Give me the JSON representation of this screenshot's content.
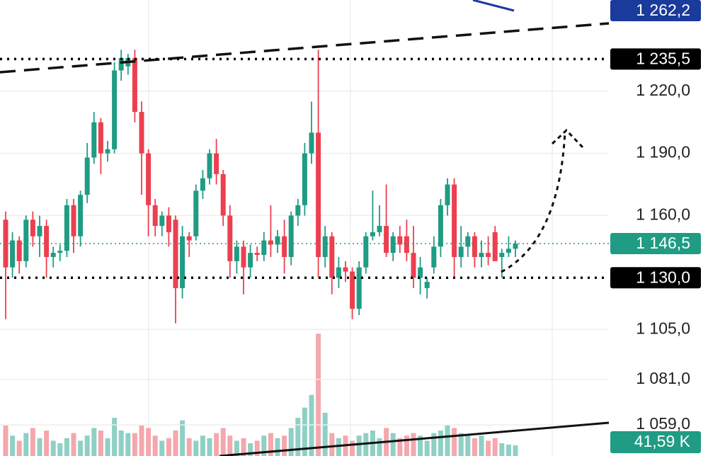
{
  "chart_data": {
    "type": "candlestick",
    "ylim": [
      1044,
      1264
    ],
    "yticks": [
      {
        "value": 1220,
        "label": "1 220,0"
      },
      {
        "value": 1190,
        "label": "1 190,0"
      },
      {
        "value": 1160,
        "label": "1 160,0"
      },
      {
        "value": 1105,
        "label": "1 105,0"
      },
      {
        "value": 1081,
        "label": "1 081,0"
      },
      {
        "value": 1059,
        "label": "1 059,0"
      }
    ],
    "grid": true,
    "up_color": "#1f9c83",
    "down_color": "#ec3f4f",
    "up_volume_color": "#8fd0c5",
    "down_volume_color": "#f4a7ad",
    "open": [
      1158,
      1135,
      1148,
      1138,
      1158,
      1150,
      1155,
      1140,
      1142,
      1143,
      1165,
      1150,
      1170,
      1188,
      1205,
      1190,
      1192,
      1230,
      1232,
      1236,
      1210,
      1190,
      1165,
      1155,
      1160,
      1158,
      1125,
      1150,
      1150,
      1172,
      1178,
      1190,
      1180,
      1160,
      1138,
      1145,
      1135,
      1142,
      1141,
      1148,
      1146,
      1150,
      1140,
      1160,
      1165,
      1190,
      1200,
      1140,
      1150,
      1130,
      1135,
      1133,
      1115,
      1135,
      1150,
      1152,
      1155,
      1142,
      1150,
      1150,
      1142,
      1130,
      1125,
      1135,
      1145,
      1165,
      1175,
      1140,
      1145,
      1150,
      1140,
      1142,
      1152,
      1140,
      1142,
      1144
    ],
    "high": [
      1162,
      1152,
      1150,
      1160,
      1162,
      1160,
      1158,
      1145,
      1146,
      1168,
      1168,
      1172,
      1195,
      1210,
      1207,
      1196,
      1234,
      1240,
      1238,
      1240,
      1215,
      1192,
      1168,
      1162,
      1164,
      1160,
      1155,
      1152,
      1175,
      1182,
      1192,
      1197,
      1182,
      1165,
      1148,
      1148,
      1146,
      1145,
      1152,
      1165,
      1153,
      1158,
      1162,
      1168,
      1195,
      1215,
      1240,
      1155,
      1152,
      1140,
      1138,
      1135,
      1138,
      1152,
      1172,
      1165,
      1175,
      1152,
      1155,
      1158,
      1155,
      1140,
      1130,
      1150,
      1168,
      1178,
      1178,
      1155,
      1152,
      1152,
      1148,
      1150,
      1155,
      1144,
      1150,
      1148
    ],
    "low": [
      1110,
      1130,
      1132,
      1135,
      1145,
      1140,
      1130,
      1135,
      1138,
      1140,
      1142,
      1145,
      1166,
      1185,
      1180,
      1186,
      1190,
      1225,
      1228,
      1205,
      1170,
      1150,
      1150,
      1150,
      1145,
      1108,
      1120,
      1140,
      1148,
      1168,
      1175,
      1175,
      1155,
      1130,
      1132,
      1122,
      1130,
      1138,
      1138,
      1140,
      1142,
      1132,
      1136,
      1155,
      1160,
      1185,
      1130,
      1135,
      1122,
      1125,
      1128,
      1110,
      1112,
      1132,
      1148,
      1150,
      1140,
      1138,
      1142,
      1138,
      1125,
      1122,
      1120,
      1132,
      1140,
      1160,
      1130,
      1135,
      1140,
      1135,
      1135,
      1136,
      1138,
      1130,
      1140,
      1140
    ],
    "close": [
      1135,
      1148,
      1138,
      1158,
      1150,
      1155,
      1140,
      1142,
      1143,
      1165,
      1150,
      1170,
      1188,
      1205,
      1190,
      1192,
      1230,
      1236,
      1236,
      1210,
      1190,
      1165,
      1155,
      1160,
      1152,
      1125,
      1150,
      1148,
      1172,
      1178,
      1190,
      1180,
      1160,
      1138,
      1145,
      1135,
      1142,
      1141,
      1148,
      1146,
      1150,
      1140,
      1160,
      1165,
      1190,
      1200,
      1140,
      1150,
      1130,
      1135,
      1133,
      1115,
      1135,
      1150,
      1152,
      1155,
      1142,
      1150,
      1146,
      1142,
      1130,
      1135,
      1128,
      1145,
      1165,
      1175,
      1140,
      1145,
      1150,
      1140,
      1142,
      1140,
      1138,
      1142,
      1144,
      1146.5
    ],
    "volume": [
      120,
      80,
      60,
      90,
      110,
      70,
      100,
      60,
      50,
      70,
      90,
      60,
      80,
      110,
      100,
      70,
      150,
      100,
      90,
      90,
      120,
      110,
      80,
      60,
      70,
      100,
      140,
      70,
      60,
      80,
      70,
      90,
      110,
      80,
      60,
      70,
      50,
      60,
      80,
      90,
      70,
      80,
      110,
      150,
      190,
      240,
      480,
      170,
      90,
      70,
      80,
      60,
      80,
      90,
      100,
      70,
      110,
      90,
      70,
      80,
      90,
      80,
      60,
      90,
      100,
      120,
      110,
      90,
      80,
      70,
      80,
      60,
      70,
      50,
      45,
      41.59
    ],
    "volume_lim": [
      0,
      1790
    ],
    "price_labels": [
      {
        "value": 1262.2,
        "label": "1 262,2",
        "color": "#1a3a9c"
      },
      {
        "value": 1235.5,
        "label": "1 235,5",
        "color": "#000000",
        "line": "dotted"
      },
      {
        "value": 1146.5,
        "label": "1 146,5",
        "color": "#1f9c83",
        "line": "thin-dotted"
      },
      {
        "value": 1130,
        "label": "1 130,0",
        "color": "#000000",
        "line": "dotted"
      }
    ],
    "volume_label": {
      "value": 41.59,
      "label": "41,59 K",
      "color": "#1f9c83"
    }
  }
}
